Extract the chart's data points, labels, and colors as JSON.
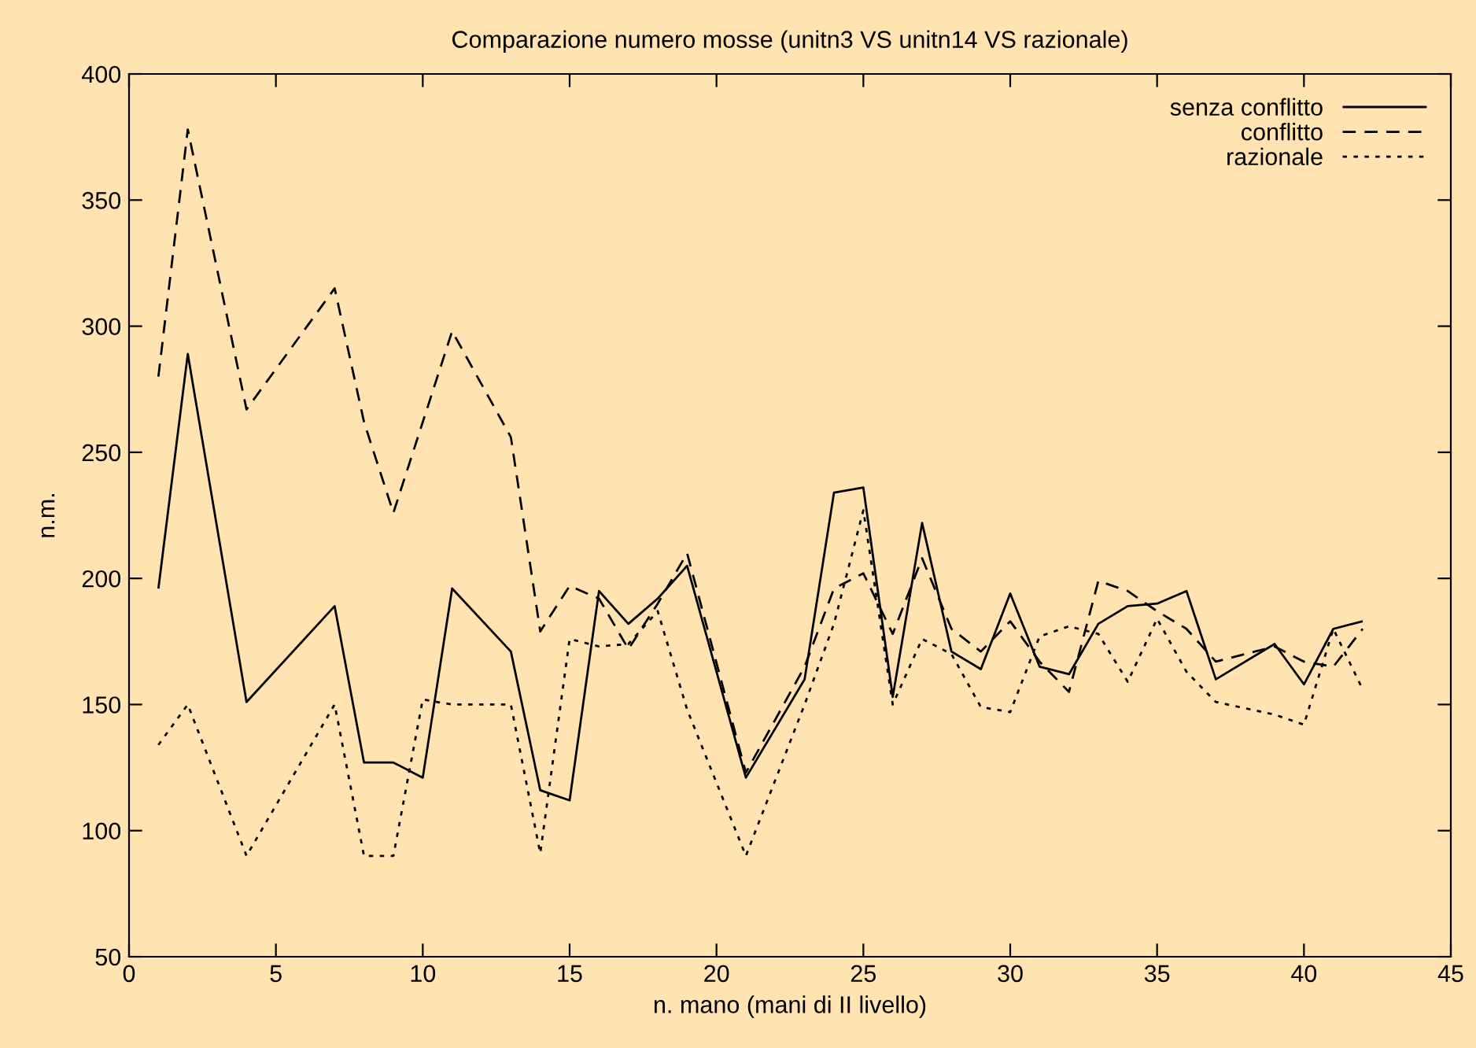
{
  "chart_data": {
    "type": "line",
    "title": "Comparazione numero mosse (unitn3 VS unitn14 VS razionale)",
    "xlabel": "n. mano (mani di II livello)",
    "ylabel": "n.m.",
    "xlim": [
      0,
      45
    ],
    "xticks": [
      0,
      5,
      10,
      15,
      20,
      25,
      30,
      35,
      40,
      45
    ],
    "ylim": [
      50,
      400
    ],
    "yticks": [
      50,
      100,
      150,
      200,
      250,
      300,
      350,
      400
    ],
    "grid": false,
    "legend": "top right",
    "marker": "none",
    "series": [
      {
        "name": "senza conflitto",
        "color": "#000000",
        "line_style": "solid",
        "x": [
          1,
          2,
          4,
          7,
          8,
          9,
          10,
          11,
          13,
          14,
          15,
          16,
          17,
          18,
          19,
          21,
          23,
          24,
          25,
          26,
          27,
          28,
          29,
          30,
          31,
          32,
          33,
          34,
          35,
          36,
          37,
          39,
          40,
          41,
          42
        ],
        "values": [
          196,
          289,
          151,
          189,
          127,
          127,
          121,
          196,
          171,
          116,
          112,
          195,
          182,
          192,
          205,
          121,
          160,
          234,
          236,
          153,
          222,
          171,
          164,
          194,
          165,
          162,
          182,
          189,
          190,
          195,
          160,
          174,
          158,
          180,
          183
        ]
      },
      {
        "name": "conflitto",
        "color": "#000000",
        "line_style": "dashed",
        "x": [
          1,
          2,
          4,
          7,
          8,
          9,
          11,
          13,
          14,
          15,
          16,
          17,
          18,
          19,
          21,
          23,
          24,
          25,
          26,
          27,
          28,
          29,
          30,
          31,
          32,
          33,
          34,
          35,
          36,
          37,
          39,
          40,
          41,
          42
        ],
        "values": [
          280,
          378,
          267,
          315,
          262,
          226,
          298,
          256,
          179,
          197,
          192,
          172,
          190,
          210,
          123,
          165,
          196,
          202,
          178,
          208,
          180,
          171,
          183,
          167,
          155,
          199,
          195,
          187,
          180,
          167,
          173,
          167,
          165,
          180
        ]
      },
      {
        "name": "razionale",
        "color": "#000000",
        "line_style": "dotted",
        "x": [
          1,
          2,
          4,
          7,
          8,
          9,
          10,
          11,
          13,
          14,
          15,
          16,
          17,
          18,
          19,
          21,
          23,
          24,
          25,
          26,
          27,
          28,
          29,
          30,
          31,
          32,
          33,
          34,
          35,
          36,
          37,
          39,
          40,
          41,
          42
        ],
        "values": [
          134,
          150,
          90,
          150,
          90,
          90,
          152,
          150,
          150,
          91,
          176,
          173,
          174,
          187,
          148,
          90,
          150,
          182,
          227,
          150,
          176,
          170,
          149,
          147,
          177,
          181,
          178,
          159,
          184,
          163,
          151,
          146,
          142,
          180,
          156
        ]
      }
    ]
  }
}
